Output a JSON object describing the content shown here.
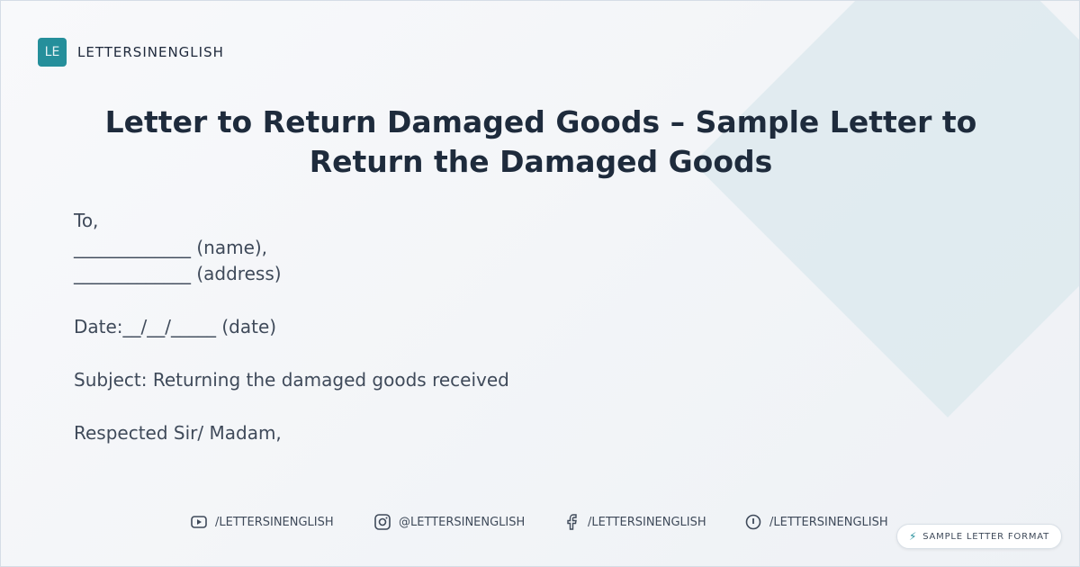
{
  "brand": {
    "logo_initials": "LE",
    "name": "LETTERSINENGLISH",
    "accent": "#258f9b"
  },
  "title": "Letter to Return Damaged Goods – Sample Letter to Return the Damaged Goods",
  "letter": {
    "to": "To,",
    "name_line": "_____________ (name),",
    "address_line": "_____________ (address)",
    "date_line": "Date:__/__/_____ (date)",
    "subject": "Subject: Returning the damaged goods received",
    "salutation": "Respected Sir/ Madam,"
  },
  "social": [
    {
      "icon": "youtube-icon",
      "label": "/LETTERSINENGLISH"
    },
    {
      "icon": "instagram-icon",
      "label": "@LETTERSINENGLISH"
    },
    {
      "icon": "facebook-icon",
      "label": "/LETTERSINENGLISH"
    },
    {
      "icon": "pinterest-icon",
      "label": "/LETTERSINENGLISH"
    }
  ],
  "badge": {
    "icon": "lightning-icon",
    "label": "SAMPLE LETTER FORMAT"
  }
}
